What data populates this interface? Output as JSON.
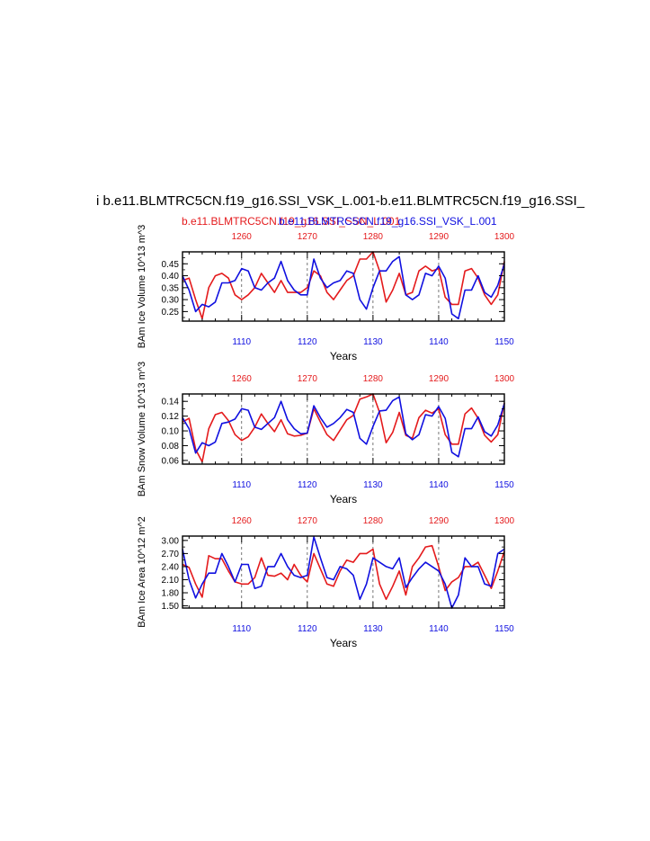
{
  "title": {
    "main": "i b.e11.BLMTRC5CN.f19_g16.SSI_VSK_L.001-b.e11.BLMTRC5CN.f19_g16.SSI_",
    "sub_red": "b.e11.BLMTRC5CN.f19_g16.SSI_SSN_L.001",
    "sub_blue": "b.e11.BLMTRC5CN.f19_g16.SSI_VSK_L.001"
  },
  "colors": {
    "red": "#e41a1c",
    "blue": "#1010e0",
    "axis": "#000000"
  },
  "chart_data": [
    {
      "type": "line",
      "ylabel": "BAm Ice Volume 10^13 m^3",
      "xlabel": "Years",
      "ylim": [
        0.21,
        0.5
      ],
      "yticks": [
        "0.25",
        "0.30",
        "0.35",
        "0.40",
        "0.45"
      ],
      "ytick_values": [
        0.25,
        0.3,
        0.35,
        0.4,
        0.45
      ],
      "x_bottom": {
        "ticks": [
          "1110",
          "1120",
          "1130",
          "1140",
          "1150"
        ],
        "range": [
          1101,
          1150
        ]
      },
      "x_top": {
        "ticks": [
          "1260",
          "1270",
          "1280",
          "1290",
          "1300"
        ],
        "range": [
          1251,
          1300
        ]
      },
      "series": [
        {
          "name": "b.e11.BLMTRC5CN.f19_g16.SSI_SSN_L.001",
          "color": "red",
          "x_start": 1251,
          "values": [
            0.38,
            0.39,
            0.3,
            0.22,
            0.35,
            0.4,
            0.41,
            0.39,
            0.32,
            0.3,
            0.32,
            0.35,
            0.41,
            0.37,
            0.33,
            0.38,
            0.33,
            0.33,
            0.33,
            0.35,
            0.42,
            0.4,
            0.33,
            0.3,
            0.34,
            0.38,
            0.4,
            0.47,
            0.47,
            0.5,
            0.42,
            0.29,
            0.34,
            0.41,
            0.32,
            0.33,
            0.42,
            0.44,
            0.42,
            0.43,
            0.31,
            0.28,
            0.28,
            0.42,
            0.43,
            0.39,
            0.32,
            0.28,
            0.32,
            0.46
          ]
        },
        {
          "name": "b.e11.BLMTRC5CN.f19_g16.SSI_VSK_L.001",
          "color": "blue",
          "x_start": 1101,
          "values": [
            0.4,
            0.34,
            0.25,
            0.28,
            0.27,
            0.29,
            0.37,
            0.37,
            0.38,
            0.43,
            0.42,
            0.35,
            0.34,
            0.37,
            0.39,
            0.46,
            0.38,
            0.34,
            0.32,
            0.32,
            0.47,
            0.39,
            0.35,
            0.37,
            0.38,
            0.42,
            0.41,
            0.3,
            0.26,
            0.35,
            0.42,
            0.42,
            0.46,
            0.48,
            0.32,
            0.3,
            0.32,
            0.41,
            0.4,
            0.44,
            0.39,
            0.24,
            0.22,
            0.34,
            0.34,
            0.4,
            0.33,
            0.31,
            0.36,
            0.45
          ]
        }
      ]
    },
    {
      "type": "line",
      "ylabel": "BAm Snow Volume 10^13 m^3",
      "xlabel": "Years",
      "ylim": [
        0.055,
        0.15
      ],
      "yticks": [
        "0.06",
        "0.08",
        "0.10",
        "0.12",
        "0.14"
      ],
      "ytick_values": [
        0.06,
        0.08,
        0.1,
        0.12,
        0.14
      ],
      "x_bottom": {
        "ticks": [
          "1110",
          "1120",
          "1130",
          "1140",
          "1150"
        ],
        "range": [
          1101,
          1150
        ]
      },
      "x_top": {
        "ticks": [
          "1260",
          "1270",
          "1280",
          "1290",
          "1300"
        ],
        "range": [
          1251,
          1300
        ]
      },
      "series": [
        {
          "name": "b.e11.BLMTRC5CN.f19_g16.SSI_SSN_L.001",
          "color": "red",
          "x_start": 1251,
          "values": [
            0.112,
            0.117,
            0.075,
            0.058,
            0.103,
            0.122,
            0.125,
            0.114,
            0.095,
            0.087,
            0.092,
            0.105,
            0.123,
            0.11,
            0.099,
            0.115,
            0.096,
            0.093,
            0.094,
            0.097,
            0.13,
            0.112,
            0.095,
            0.087,
            0.101,
            0.115,
            0.121,
            0.143,
            0.146,
            0.15,
            0.125,
            0.084,
            0.098,
            0.125,
            0.094,
            0.09,
            0.118,
            0.128,
            0.124,
            0.13,
            0.095,
            0.082,
            0.082,
            0.123,
            0.131,
            0.117,
            0.094,
            0.085,
            0.095,
            0.138
          ]
        },
        {
          "name": "b.e11.BLMTRC5CN.f19_g16.SSI_VSK_L.001",
          "color": "blue",
          "x_start": 1101,
          "values": [
            0.118,
            0.103,
            0.07,
            0.084,
            0.08,
            0.085,
            0.11,
            0.112,
            0.116,
            0.13,
            0.128,
            0.105,
            0.102,
            0.11,
            0.118,
            0.14,
            0.115,
            0.103,
            0.096,
            0.097,
            0.134,
            0.118,
            0.105,
            0.11,
            0.118,
            0.129,
            0.125,
            0.09,
            0.082,
            0.106,
            0.127,
            0.128,
            0.141,
            0.146,
            0.096,
            0.088,
            0.095,
            0.122,
            0.12,
            0.133,
            0.117,
            0.071,
            0.065,
            0.103,
            0.103,
            0.119,
            0.099,
            0.093,
            0.108,
            0.137
          ]
        }
      ]
    },
    {
      "type": "line",
      "ylabel": "BAm Ice Area 10^12 m^2",
      "xlabel": "Years",
      "ylim": [
        1.45,
        3.1
      ],
      "yticks": [
        "1.50",
        "1.80",
        "2.10",
        "2.40",
        "2.70",
        "3.00"
      ],
      "ytick_values": [
        1.5,
        1.8,
        2.1,
        2.4,
        2.7,
        3.0
      ],
      "x_bottom": {
        "ticks": [
          "1110",
          "1120",
          "1130",
          "1140",
          "1150"
        ],
        "range": [
          1101,
          1150
        ]
      },
      "x_top": {
        "ticks": [
          "1260",
          "1270",
          "1280",
          "1290",
          "1300"
        ],
        "range": [
          1251,
          1300
        ]
      },
      "series": [
        {
          "name": "b.e11.BLMTRC5CN.f19_g16.SSI_SSN_L.001",
          "color": "red",
          "x_start": 1251,
          "values": [
            2.45,
            2.38,
            2.0,
            1.7,
            2.65,
            2.58,
            2.58,
            2.3,
            2.05,
            2.0,
            2.0,
            2.15,
            2.6,
            2.2,
            2.18,
            2.25,
            2.1,
            2.45,
            2.2,
            2.05,
            2.7,
            2.35,
            2.0,
            1.95,
            2.3,
            2.55,
            2.5,
            2.7,
            2.7,
            2.8,
            2.0,
            1.65,
            1.95,
            2.3,
            1.75,
            2.4,
            2.6,
            2.85,
            2.88,
            2.4,
            1.85,
            2.05,
            2.15,
            2.4,
            2.4,
            2.5,
            2.2,
            1.9,
            2.3,
            2.75
          ]
        },
        {
          "name": "b.e11.BLMTRC5CN.f19_g16.SSI_VSK_L.001",
          "color": "blue",
          "x_start": 1101,
          "values": [
            2.8,
            2.1,
            1.68,
            2.0,
            2.25,
            2.25,
            2.7,
            2.4,
            2.05,
            2.45,
            2.45,
            1.9,
            1.95,
            2.4,
            2.4,
            2.7,
            2.4,
            2.2,
            2.15,
            2.2,
            3.08,
            2.6,
            2.15,
            2.1,
            2.4,
            2.35,
            2.2,
            1.65,
            2.0,
            2.6,
            2.5,
            2.4,
            2.35,
            2.6,
            1.92,
            2.15,
            2.35,
            2.5,
            2.4,
            2.3,
            2.0,
            1.45,
            1.75,
            2.6,
            2.4,
            2.4,
            2.0,
            1.95,
            2.7,
            2.8
          ]
        }
      ]
    }
  ]
}
